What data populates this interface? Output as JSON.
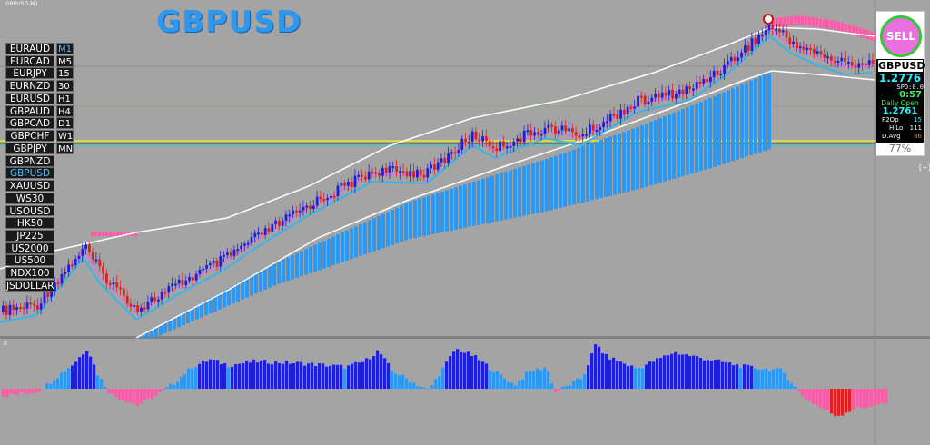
{
  "window_title": "GBPUSD,M1",
  "symbol_title": "GBPUSD",
  "symbols": [
    "EURAUD",
    "EURCAD",
    "EURJPY",
    "EURNZD",
    "EURUSD",
    "GBPAUD",
    "GBPCAD",
    "GBPCHF",
    "GBPJPY",
    "GBPNZD",
    "GBPUSD",
    "XAUUSD",
    "WS30",
    "USOUSD",
    "HK50",
    "JP225",
    "US2000",
    "US500",
    "NDX100",
    "JSDOLLAR"
  ],
  "active_symbol": "GBPUSD",
  "timeframes": [
    "M1",
    "M5",
    "15",
    "30",
    "H1",
    "H4",
    "D1",
    "W1",
    "MN"
  ],
  "active_timeframe": "M1",
  "info_panel": {
    "signal": "SELL",
    "symbol": "GBPUSD",
    "price": "1.2776",
    "spread": "SPD:0.0",
    "timer": "0:57",
    "daily_open_label": "Daily Open",
    "daily_open": "1.2761",
    "rows": [
      {
        "key": "P2Op",
        "value": "15"
      },
      {
        "key": "HiLo",
        "value": "111"
      },
      {
        "key": "D.Avg",
        "value": "86"
      }
    ],
    "percent": "77%"
  },
  "plus_mark": "[+]",
  "oscillator_label": "0",
  "colors": {
    "background": "#a4a4a4",
    "bull_candle": "#1f1fdb",
    "bear_candle": "#e02020",
    "fast_ma": "#e86ee0",
    "slow_ma": "#3ab3e8",
    "band": "#ffffff",
    "cloud_up": "#2e97f0",
    "cloud_down": "#f15fa6",
    "hist_pos": "#2e97f0",
    "hist_strong": "#1f1fdb",
    "hist_neg": "#f15fa6",
    "hist_neg_strong": "#e02020",
    "yellow_line": "#e8e83a",
    "cyan_line": "#2fc8c8"
  }
}
